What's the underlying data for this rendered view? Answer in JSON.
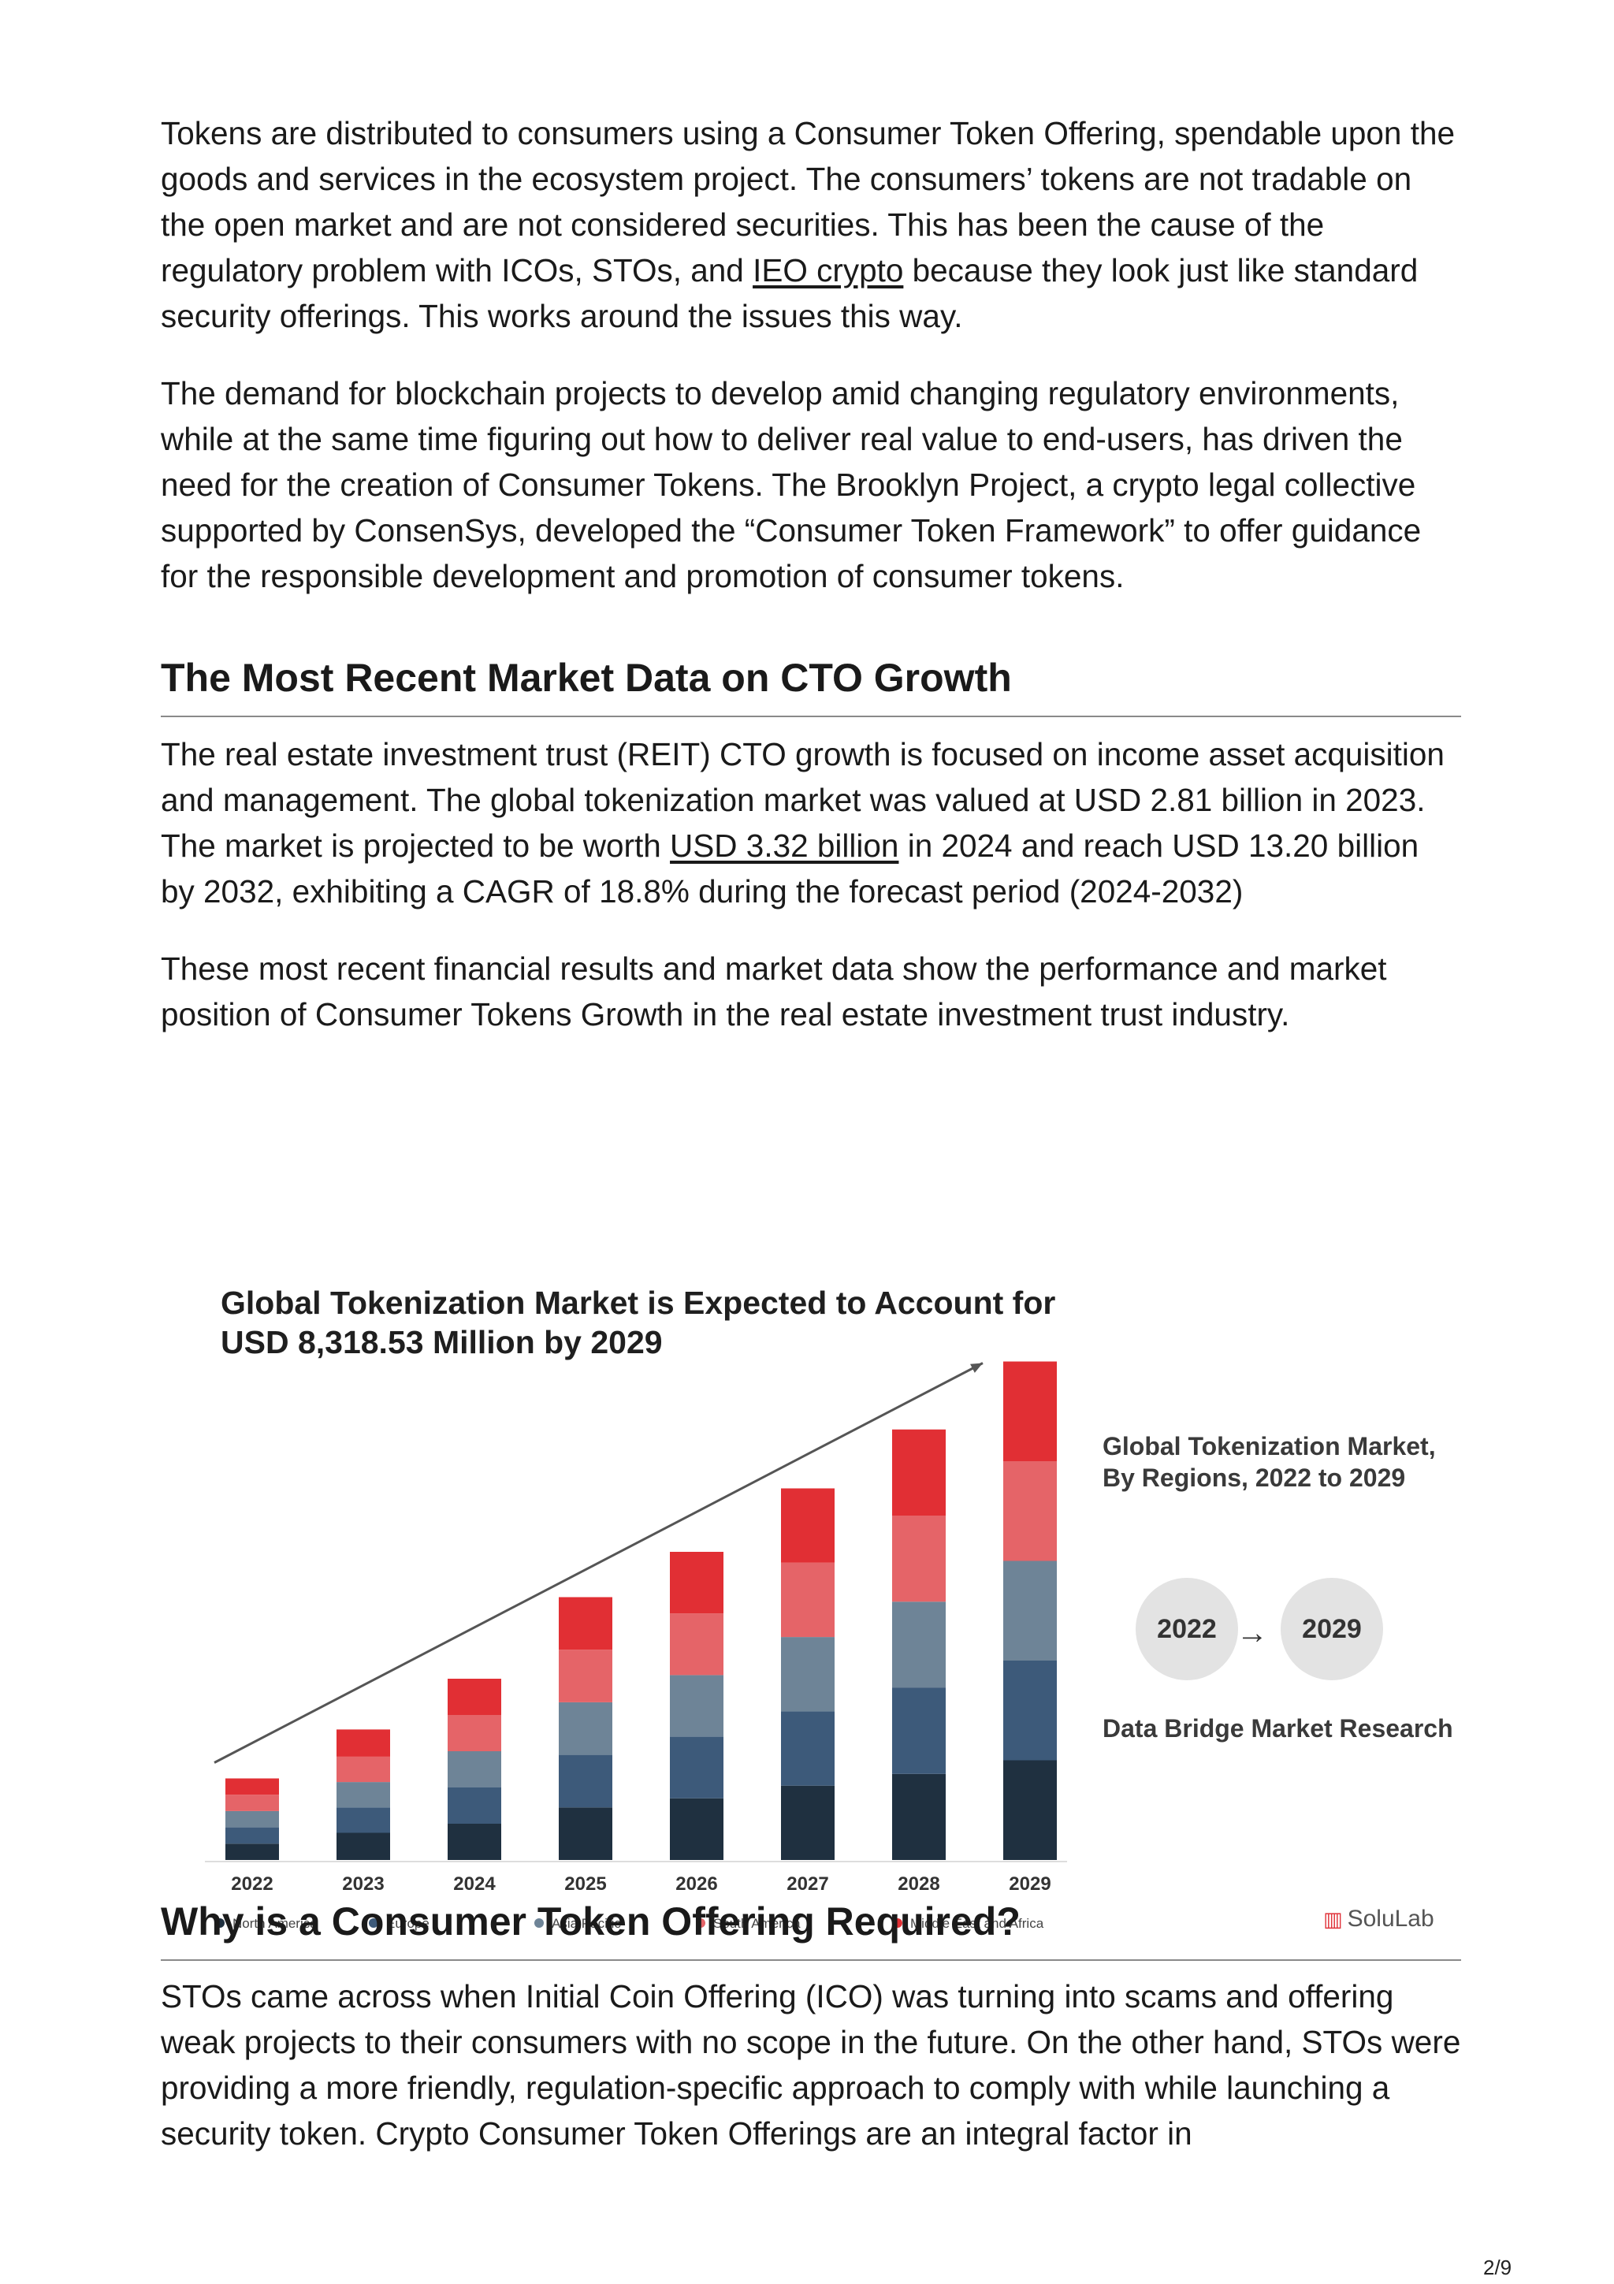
{
  "paragraphs_top": [
    {
      "before": "Tokens are distributed to consumers using a Consumer Token Offering, spendable upon the goods and services in the ecosystem project. The consumers’ tokens are not tradable on the open market and are not considered securities. This has been the cause of the regulatory problem with ICOs, STOs, and ",
      "link": "IEO crypto",
      "after": " because they look just like standard security offerings. This works around the issues this way."
    },
    {
      "text": "The demand for blockchain projects to develop amid changing regulatory environments, while at the same time figuring out how to deliver real value to end-users, has driven the need for the creation of Consumer Tokens. The Brooklyn Project, a crypto legal collective supported by ConsenSys, developed the “Consumer Token Framework” to offer guidance for the responsible development and promotion of consumer tokens."
    }
  ],
  "heading1": "The Most Recent Market Data on CTO Growth",
  "paragraphs_mid": [
    {
      "before": "The real estate investment trust (REIT) CTO growth is focused on income asset acquisition and management. The global tokenization market was valued at USD 2.81 billion in 2023. The market is projected to be worth ",
      "link": "USD 3.32 billion",
      "after": " in 2024 and reach USD 13.20 billion by 2032, exhibiting a CAGR of 18.8% during the forecast period (2024-2032)"
    },
    {
      "text": "These most recent financial results and market data show the performance and market position of Consumer Tokens Growth in the real estate investment trust industry."
    }
  ],
  "infographic": {
    "title_line1": "Global Tokenization Market is Expected to Account for",
    "title_line2": "USD 8,318.53 Million by 2029",
    "side_title_line1": "Global Tokenization Market,",
    "side_title_line2": "By Regions, 2022 to 2029",
    "circle_left": "2022",
    "circle_arrow": "→",
    "circle_right": "2029",
    "source": "Data Bridge Market Research",
    "logo_text": "SoluLab",
    "logo_mark": "▥"
  },
  "chart_data": {
    "type": "bar",
    "stacked": true,
    "categories": [
      "2022",
      "2023",
      "2024",
      "2025",
      "2026",
      "2027",
      "2028",
      "2029"
    ],
    "series": [
      {
        "name": "North America",
        "color": "#1f3040",
        "values": [
          0.18,
          0.3,
          0.4,
          0.58,
          0.68,
          0.82,
          0.95,
          1.1
        ]
      },
      {
        "name": "Europe",
        "color": "#3d5a7a",
        "values": [
          0.18,
          0.28,
          0.4,
          0.58,
          0.68,
          0.82,
          0.95,
          1.1
        ]
      },
      {
        "name": "Asia Pacific",
        "color": "#6e8497",
        "values": [
          0.18,
          0.28,
          0.4,
          0.58,
          0.68,
          0.82,
          0.95,
          1.1
        ]
      },
      {
        "name": "South America",
        "color": "#e56468",
        "values": [
          0.18,
          0.28,
          0.4,
          0.58,
          0.68,
          0.82,
          0.95,
          1.1
        ]
      },
      {
        "name": "Middle East and Africa",
        "color": "#e12f34",
        "values": [
          0.18,
          0.3,
          0.4,
          0.58,
          0.68,
          0.82,
          0.95,
          1.1
        ]
      }
    ],
    "trend_arrow": true,
    "y_axis_shown": false,
    "legend_position": "bottom"
  },
  "heading2": "Why is a Consumer Token Offering Required?",
  "paragraph_bottom": "STOs came across when Initial Coin Offering (ICO) was turning into scams and offering weak projects to their consumers with no scope in the future. On the other hand, STOs were providing a more friendly, regulation-specific approach to comply with while launching a security token. Crypto Consumer Token Offerings are an integral factor in",
  "page_number": "2/9"
}
